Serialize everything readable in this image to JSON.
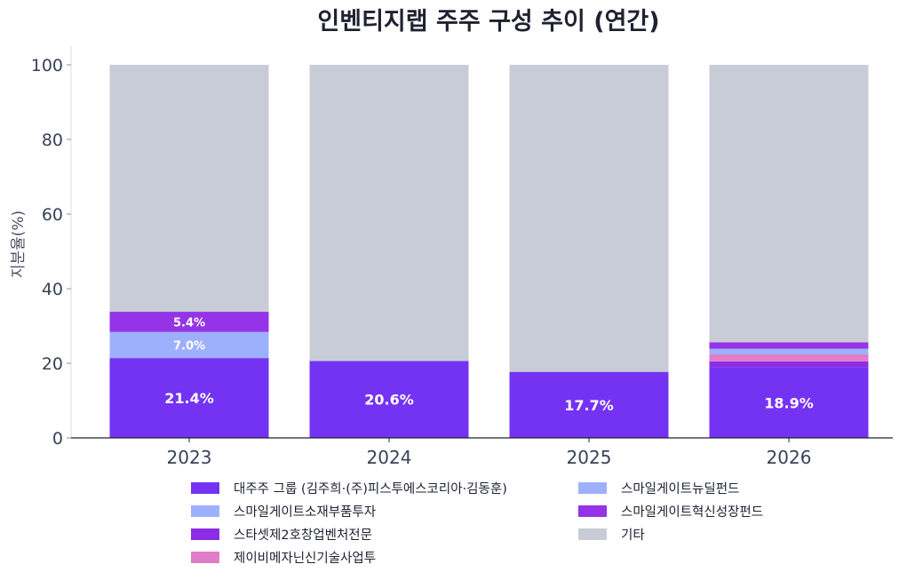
{
  "chart_data": {
    "type": "bar",
    "stacked": true,
    "title": "인벤티지랩 주주 구성 추이 (연간)",
    "xlabel": "",
    "ylabel": "지분율(%)",
    "ylim": [
      0,
      105
    ],
    "yticks": [
      0,
      20,
      40,
      60,
      80,
      100
    ],
    "grid": false,
    "legend_position": "bottom",
    "categories": [
      "2023",
      "2024",
      "2025",
      "2026"
    ],
    "series": [
      {
        "name": "대주주 그룹 (김주희·(주)피스투에스코리아·김동훈)",
        "color": "#7433f2",
        "values": [
          21.4,
          20.6,
          17.7,
          18.9
        ],
        "labels": [
          "21.4%",
          "20.6%",
          "17.7%",
          "18.9%"
        ]
      },
      {
        "name": "스마일게이트소재부품투자",
        "color": "#9db0fb",
        "values": [
          7.0,
          0,
          0,
          0
        ],
        "labels": [
          "7.0%",
          "",
          "",
          ""
        ]
      },
      {
        "name": "스타셋제2호창업벤처전문",
        "color": "#8b2de4",
        "values": [
          0,
          0,
          0,
          1.6
        ],
        "labels": [
          "",
          "",
          "",
          ""
        ]
      },
      {
        "name": "제이비메자닌신기술사업투",
        "color": "#e17cc8",
        "values": [
          0,
          0,
          0,
          1.9
        ],
        "labels": [
          "",
          "",
          "",
          ""
        ]
      },
      {
        "name": "스마일게이트뉴딜펀드",
        "color": "#9db0fb",
        "values": [
          0,
          0,
          0,
          1.5
        ],
        "labels": [
          "",
          "",
          "",
          ""
        ]
      },
      {
        "name": "스마일게이트혁신성장펀드",
        "color": "#9434e6",
        "values": [
          5.4,
          0,
          0,
          1.7
        ],
        "labels": [
          "5.4%",
          "",
          "",
          ""
        ]
      },
      {
        "name": "기타",
        "color": "#c8ccd6",
        "values": [
          66.2,
          79.4,
          82.3,
          74.4
        ],
        "labels": [
          "",
          "",
          "",
          ""
        ]
      }
    ]
  },
  "legend": {
    "items": [
      {
        "label": "대주주 그룹 (김주희·(주)피스투에스코리아·김동훈)",
        "color": "#7433f2"
      },
      {
        "label": "스마일게이트소재부품투자",
        "color": "#9db0fb"
      },
      {
        "label": "스타셋제2호창업벤처전문",
        "color": "#8b2de4"
      },
      {
        "label": "제이비메자닌신기술사업투",
        "color": "#e17cc8"
      },
      {
        "label": "스마일게이트뉴딜펀드",
        "color": "#9db0fb"
      },
      {
        "label": "스마일게이트혁신성장펀드",
        "color": "#9434e6"
      },
      {
        "label": "기타",
        "color": "#c8ccd6"
      }
    ]
  }
}
